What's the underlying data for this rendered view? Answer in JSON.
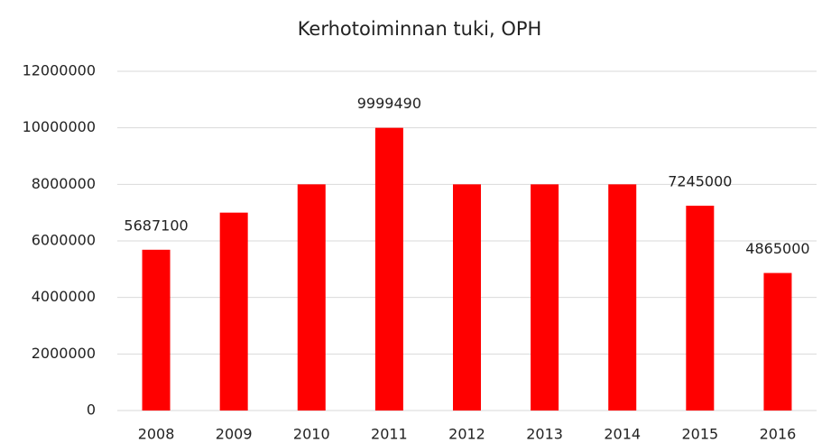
{
  "chart_data": {
    "type": "bar",
    "title": "Kerhotoiminnan tuki, OPH",
    "categories": [
      "2008",
      "2009",
      "2010",
      "2011",
      "2012",
      "2013",
      "2014",
      "2015",
      "2016"
    ],
    "values": [
      5687100,
      7000000,
      8000000,
      9999490,
      8000000,
      8000000,
      8000000,
      7245000,
      4865000
    ],
    "value_labels": [
      "5687100",
      null,
      null,
      "9999490",
      null,
      null,
      null,
      "7245000",
      "4865000"
    ],
    "color": "#ff0000",
    "ylim": [
      0,
      12000000
    ],
    "yticks": [
      0,
      2000000,
      4000000,
      6000000,
      8000000,
      10000000,
      12000000
    ],
    "grid": true
  }
}
